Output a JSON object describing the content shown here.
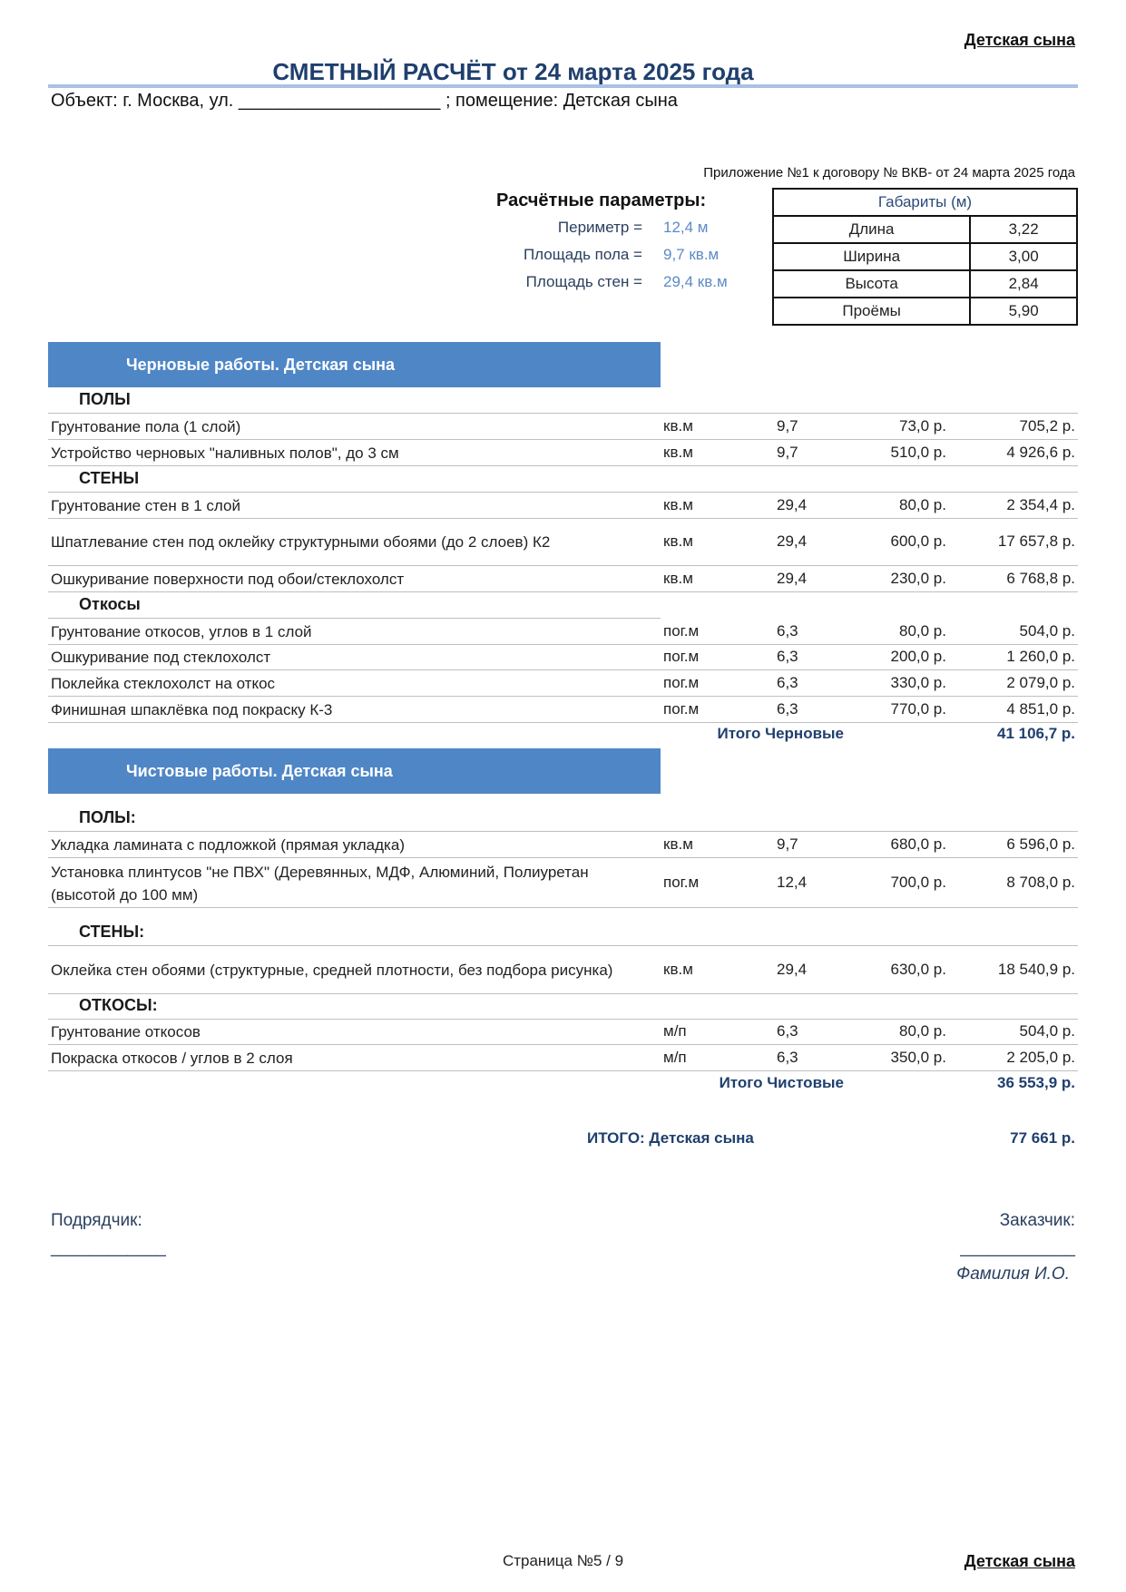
{
  "header": {
    "corner_label": "Детская сына",
    "title": "СМЕТНЫЙ РАСЧЁТ от  24  марта 2025 года",
    "object_line": "Объект: г. Москва, ул. ____________________  ;  помещение: Детская сына",
    "appendix": "Приложение  №1  к договору №  ВКВ-  от  24  марта 2025 года"
  },
  "params": {
    "title": "Расчётные параметры:",
    "items": [
      {
        "label": "Периметр =",
        "value": "12,4 м"
      },
      {
        "label": "Площадь пола =",
        "value": "9,7 кв.м"
      },
      {
        "label": "Площадь стен =",
        "value": "29,4 кв.м"
      }
    ]
  },
  "dimensions": {
    "title": "Габариты (м)",
    "rows": [
      {
        "label": "Длина",
        "value": "3,22"
      },
      {
        "label": "Ширина",
        "value": "3,00"
      },
      {
        "label": "Высота",
        "value": "2,84"
      },
      {
        "label": "Проёмы",
        "value": "5,90"
      }
    ]
  },
  "rough": {
    "header": "Черновые работы.   Детская сына",
    "rows": [
      {
        "type": "sub",
        "name": "ПОЛЫ"
      },
      {
        "name": "Грунтование пола (1 слой)",
        "unit": "кв.м",
        "qty": "9,7",
        "price": "73,0 р.",
        "total": "705,2 р."
      },
      {
        "name": "Устройство черновых \"наливных полов\", до 3 см",
        "unit": "кв.м",
        "qty": "9,7",
        "price": "510,0 р.",
        "total": "4 926,6 р."
      },
      {
        "type": "sub",
        "name": "СТЕНЫ"
      },
      {
        "name": "Грунтование стен в 1 слой",
        "unit": "кв.м",
        "qty": "29,4",
        "price": "80,0 р.",
        "total": "2 354,4 р."
      },
      {
        "name": "Шпатлевание стен под оклейку структурными обоями (до 2 слоев)  К2",
        "unit": "кв.м",
        "qty": "29,4",
        "price": "600,0 р.",
        "total": "17 657,8 р."
      },
      {
        "name": "Ошкуривание поверхности под обои/стеклохолст",
        "unit": "кв.м",
        "qty": "29,4",
        "price": "230,0 р.",
        "total": "6 768,8 р."
      },
      {
        "type": "sub",
        "name": "Откосы"
      },
      {
        "name": "Грунтование откосов, углов в 1 слой",
        "unit": "пог.м",
        "qty": "6,3",
        "price": "80,0 р.",
        "total": "504,0 р."
      },
      {
        "name": "Ошкуривание под стеклохолст",
        "unit": "пог.м",
        "qty": "6,3",
        "price": "200,0 р.",
        "total": "1 260,0 р."
      },
      {
        "name": "Поклейка стеклохолст на откос",
        "unit": "пог.м",
        "qty": "6,3",
        "price": "330,0 р.",
        "total": "2 079,0 р."
      },
      {
        "name": "Финишная шпаклёвка под покраску  К-3",
        "unit": "пог.м",
        "qty": "6,3",
        "price": "770,0 р.",
        "total": "4 851,0 р."
      }
    ],
    "subtotal_label": "Итого Черновые",
    "subtotal_value": "41 106,7 р."
  },
  "finish": {
    "header": "Чистовые работы.   Детская сына",
    "rows": [
      {
        "type": "sub",
        "name": "ПОЛЫ:"
      },
      {
        "name": "Укладка ламината с подложкой (прямая укладка)",
        "unit": "кв.м",
        "qty": "9,7",
        "price": "680,0 р.",
        "total": "6 596,0 р."
      },
      {
        "name": "Установка плинтусов \"не ПВХ\" (Деревянных, МДФ, Алюминий, Полиуретан (высотой до 100 мм)",
        "unit": "пог.м",
        "qty": "12,4",
        "price": "700,0 р.",
        "total": "8 708,0 р."
      },
      {
        "type": "sub",
        "name": "СТЕНЫ:"
      },
      {
        "name": "Оклейка стен обоями (структурные, средней плотности, без подбора рисунка)",
        "unit": "кв.м",
        "qty": "29,4",
        "price": "630,0 р.",
        "total": "18 540,9 р."
      },
      {
        "type": "sub",
        "name": "ОТКОСЫ:"
      },
      {
        "name": "Грунтование откосов",
        "unit": "м/п",
        "qty": "6,3",
        "price": "80,0 р.",
        "total": "504,0 р."
      },
      {
        "name": "Покраска откосов / углов  в 2 слоя",
        "unit": "м/п",
        "qty": "6,3",
        "price": "350,0 р.",
        "total": "2 205,0 р."
      }
    ],
    "subtotal_label": "Итого Чистовые",
    "subtotal_value": "36 553,9 р."
  },
  "total": {
    "label": "ИТОГО: Детская сына",
    "value": "77 661 р."
  },
  "signatures": {
    "contractor": "Подрядчик:",
    "contractor_line": "____________",
    "customer": "Заказчик:",
    "customer_line": "____________",
    "customer_name": "Фамилия И.О."
  },
  "footer": {
    "page": "Страница №5 / 9",
    "corner_label": "Детская сына"
  }
}
